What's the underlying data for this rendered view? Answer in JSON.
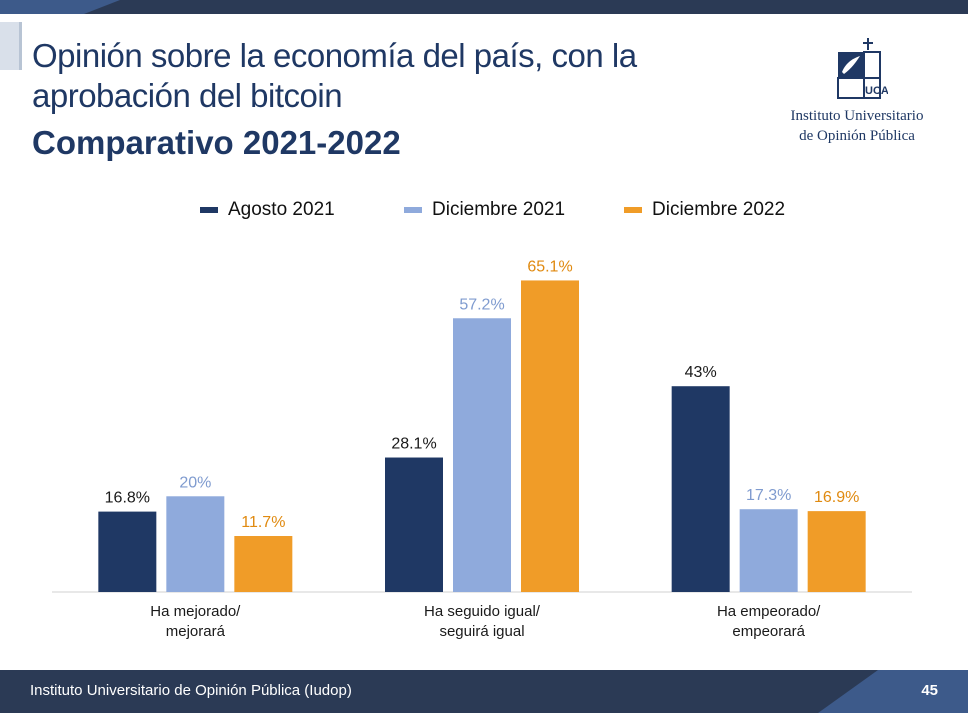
{
  "header": {
    "title": "Opinión sobre la economía del país, con la aprobación del bitcoin",
    "subtitle": "Comparativo 2021-2022"
  },
  "logo": {
    "name_line1": "Instituto Universitario",
    "name_line2": "de Opinión Pública",
    "emblem_text": "UCA",
    "icon": "uca-seal-icon"
  },
  "chart_data": {
    "type": "bar",
    "categories": [
      "Ha mejorado/\nmejorará",
      "Ha seguido igual/\nseguirá igual",
      "Ha empeorado/\nempeorará"
    ],
    "series": [
      {
        "name": "Agosto 2021",
        "values": [
          16.8,
          28.1,
          43
        ],
        "labels": [
          "16.8%",
          "28.1%",
          "43%"
        ],
        "color": "#1f3864",
        "label_color": "#1a1a1a"
      },
      {
        "name": "Diciembre 2021",
        "values": [
          20,
          57.2,
          17.3
        ],
        "labels": [
          "20%",
          "57.2%",
          "17.3%"
        ],
        "color": "#8faadc",
        "label_color": "#7f9bcf"
      },
      {
        "name": "Diciembre 2022",
        "values": [
          11.7,
          65.1,
          16.9
        ],
        "labels": [
          "11.7%",
          "65.1%",
          "16.9%"
        ],
        "color": "#f09c28",
        "label_color": "#e08a10"
      }
    ],
    "ylim": [
      0,
      70
    ],
    "grid": false,
    "legend_position": "top"
  },
  "footer": {
    "text": "Instituto Universitario de Opinión Pública (Iudop)",
    "page": "45"
  }
}
